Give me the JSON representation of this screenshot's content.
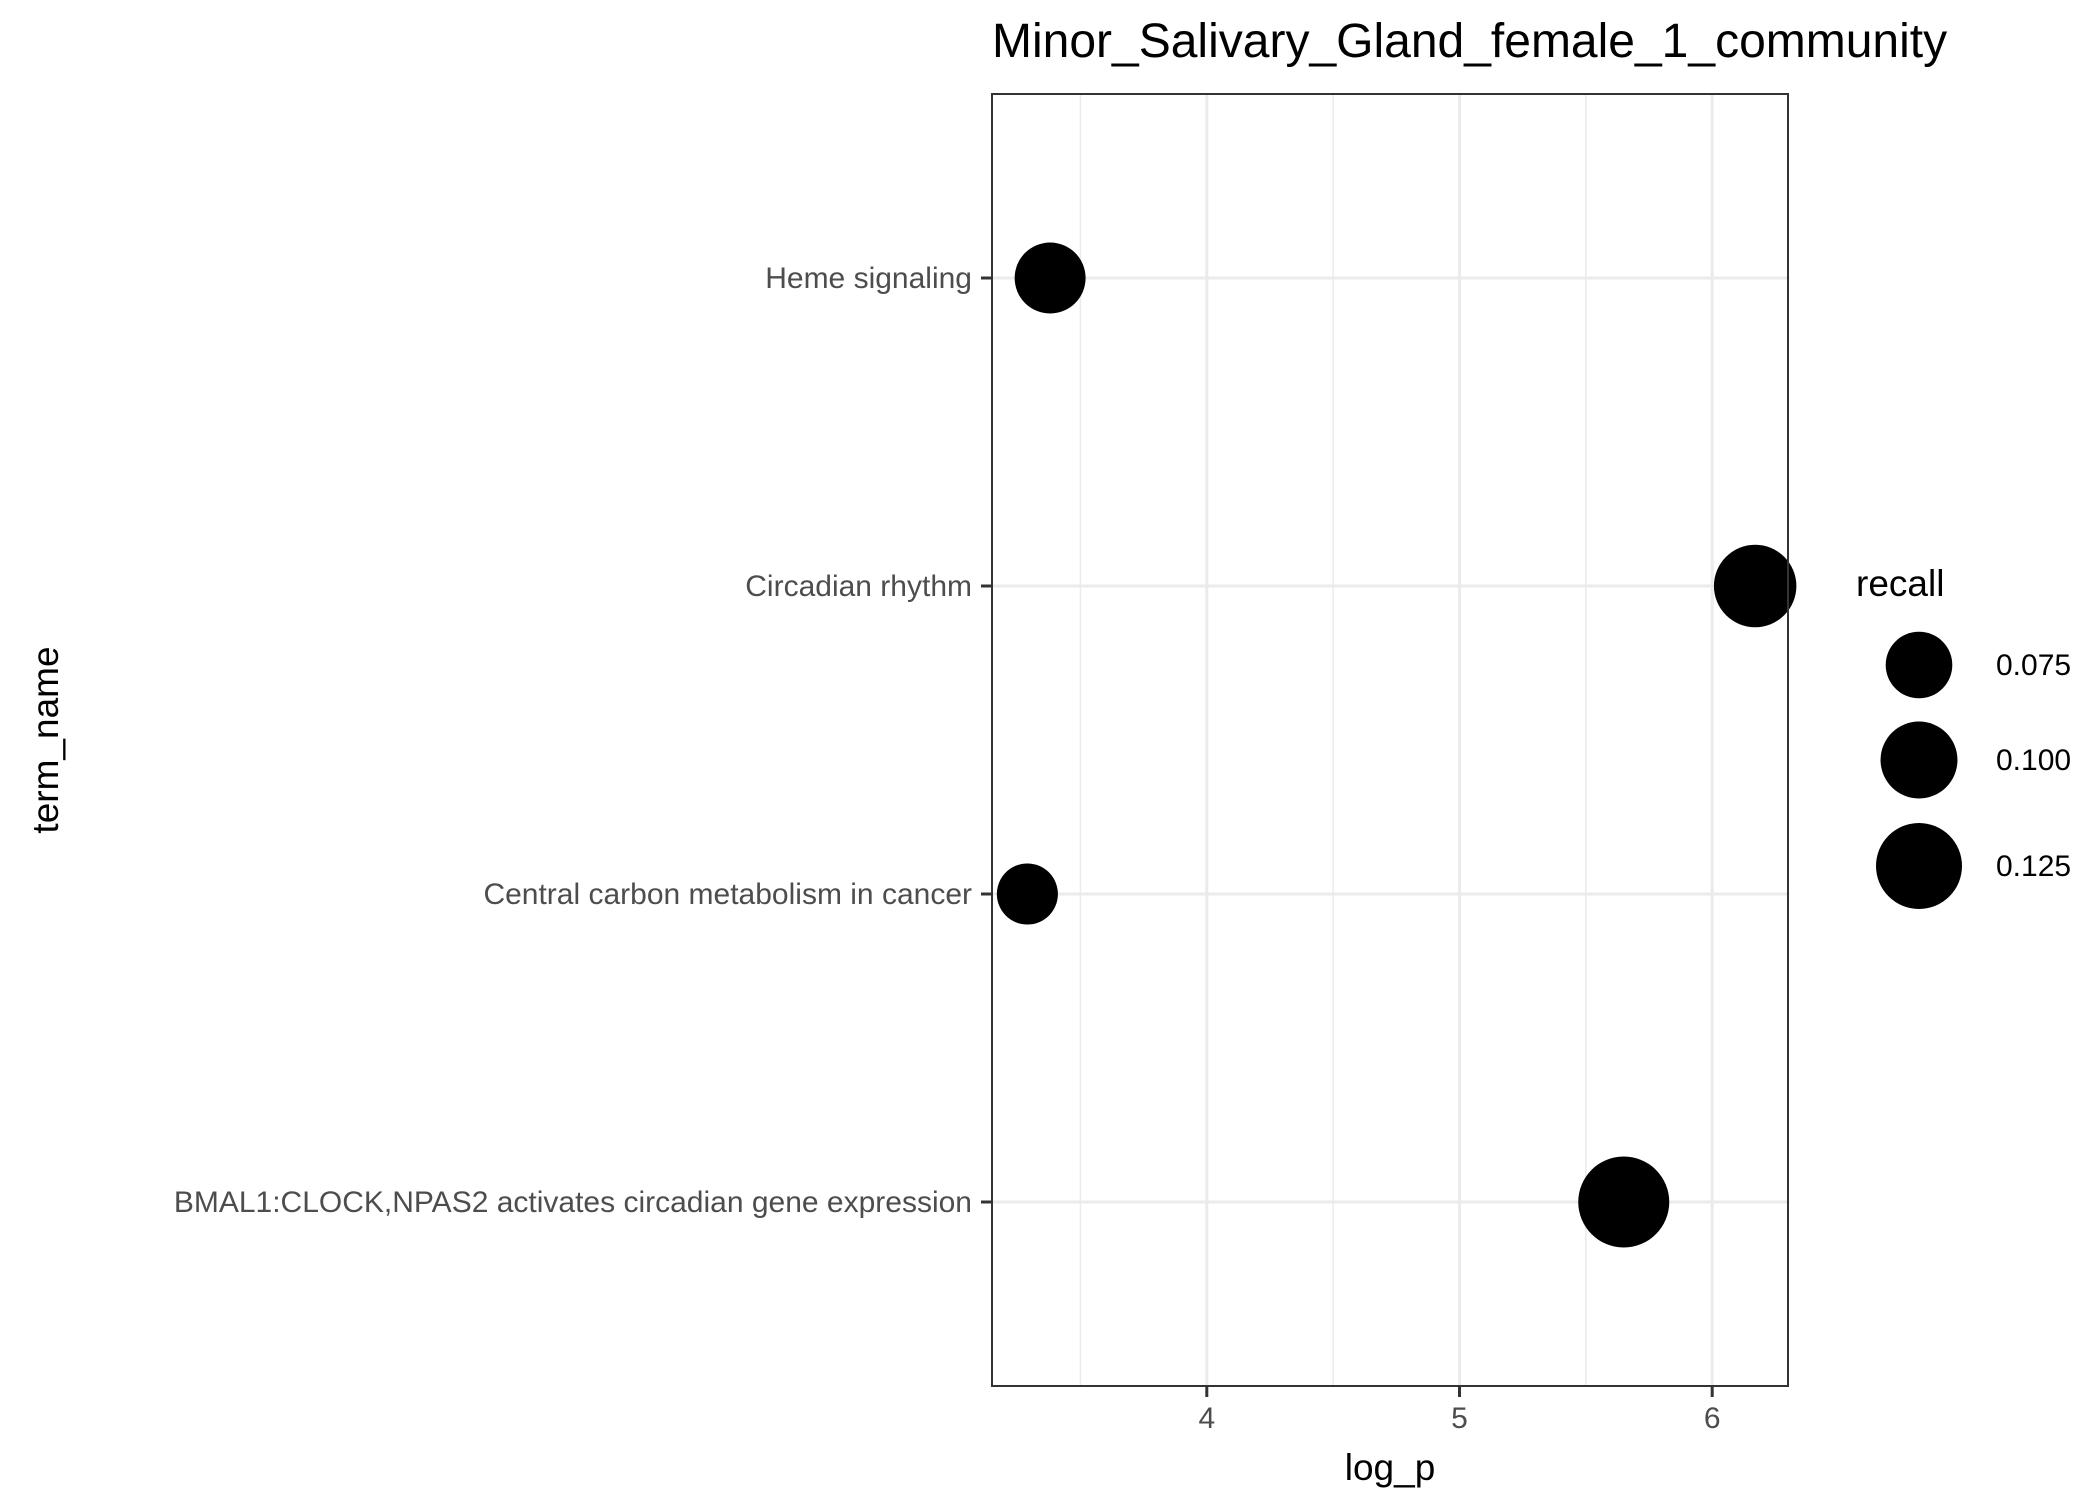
{
  "chart_data": {
    "type": "scatter",
    "title": "Minor_Salivary_Gland_female_1_community",
    "xlabel": "log_p",
    "ylabel": "term_name",
    "xlim": [
      3.15,
      6.3
    ],
    "x_ticks": [
      4,
      5,
      6
    ],
    "x_tick_labels": [
      "4",
      "5",
      "6"
    ],
    "x_minor_ticks": [
      3.5,
      4.5,
      5.5
    ],
    "categories": [
      "BMAL1:CLOCK,NPAS2 activates circadian gene expression",
      "Central carbon metabolism in cancer",
      "Circadian rhythm",
      "Heme signaling"
    ],
    "points": [
      {
        "term_name": "Heme signaling",
        "log_p": 3.38,
        "recall": 0.085
      },
      {
        "term_name": "Circadian rhythm",
        "log_p": 6.17,
        "recall": 0.115
      },
      {
        "term_name": "Central carbon metabolism in cancer",
        "log_p": 3.29,
        "recall": 0.063
      },
      {
        "term_name": "BMAL1:CLOCK,NPAS2 activates circadian gene expression",
        "log_p": 5.65,
        "recall": 0.14
      }
    ],
    "size_legend": {
      "title": "recall",
      "values": [
        0.075,
        0.1,
        0.125
      ],
      "labels": [
        "0.075",
        "0.100",
        "0.125"
      ]
    },
    "grid": true,
    "legend_position": "right",
    "colors": {
      "point": "#000000",
      "grid": "#ebebeb",
      "panel_border": "#333333"
    }
  }
}
